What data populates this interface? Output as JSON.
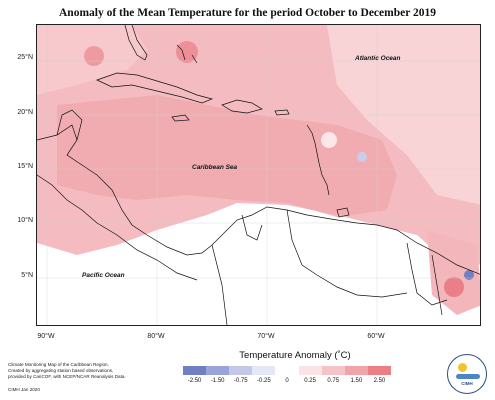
{
  "title": "Anomaly of the Mean Temperature for the period October to December 2019",
  "axes": {
    "lat_ticks": [
      "25°N",
      "20°N",
      "15°N",
      "10°N",
      "5°N"
    ],
    "lon_ticks": [
      "90°W",
      "80°W",
      "70°W",
      "60°W"
    ]
  },
  "labels": {
    "atlantic": "Atlantic Ocean",
    "caribbean": "Caribbean Sea",
    "pacific": "Pacific Ocean"
  },
  "credits": {
    "line1": "Climate Monitoring Map of the Caribbean Region.",
    "line2": "Created by aggregating station based observations,",
    "line3": "provided by CariCOF, with NCEP/NCAR Reanalysis Data.",
    "line4": "CIMH  Jan 2020"
  },
  "legend": {
    "title": "Temperature Anomaly (˚C)",
    "labels": [
      "-2.50",
      "-1.50",
      "-0.75",
      "-0.25",
      "0",
      "0.25",
      "0.75",
      "1.50",
      "2.50"
    ],
    "colors": [
      "#6f7fc2",
      "#9aa4d8",
      "#c3c8e8",
      "#e4e7f4",
      "#ffffff",
      "#fbe2e4",
      "#f5c3c7",
      "#f0a3a9",
      "#eb7f88"
    ]
  },
  "logo": {
    "text": "CIMH"
  }
}
